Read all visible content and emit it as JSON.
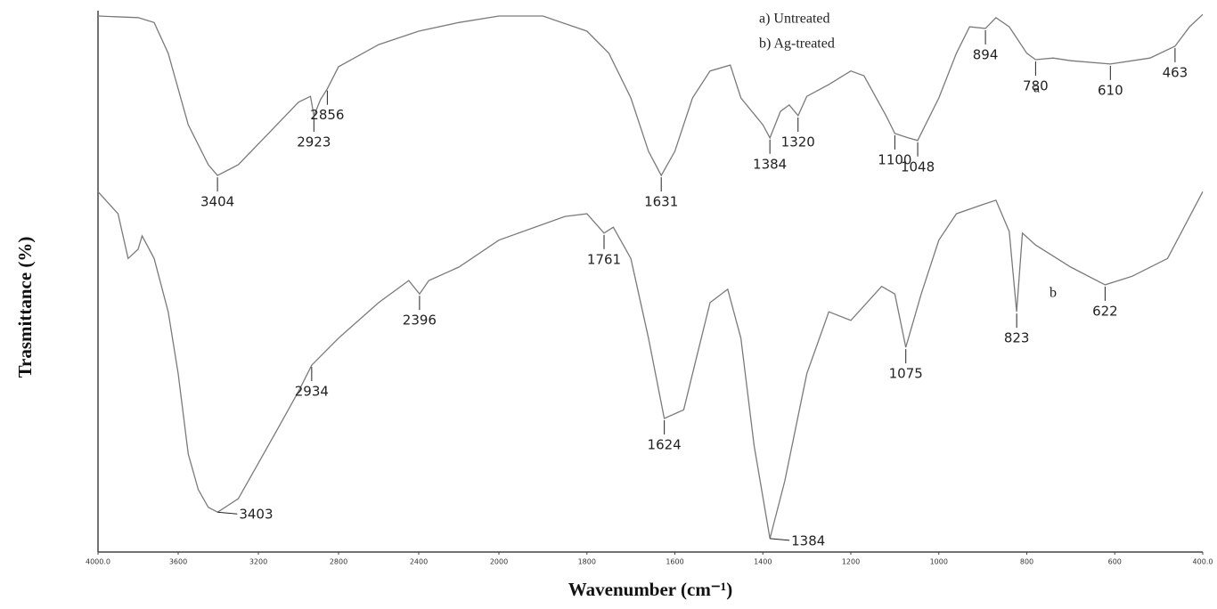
{
  "chart_data": {
    "type": "line",
    "x_label": "Wavenumber (cm⁻¹)",
    "y_label": "Trasmittance (%)",
    "xlim": [
      4000,
      400
    ],
    "x_scale_change": 2000,
    "xticks": [
      {
        "value": 4000,
        "label": "4000.0"
      },
      3600,
      3200,
      2800,
      2400,
      2000,
      1800,
      1600,
      1400,
      1200,
      1000,
      800,
      600,
      {
        "value": 400,
        "label": "400.0"
      }
    ],
    "ylim": [
      0,
      100
    ],
    "series": [
      {
        "name": "a) Untreated",
        "tag": "a",
        "color": "#7a7a7a",
        "x": [
          4000,
          3800,
          3720,
          3650,
          3550,
          3450,
          3404,
          3300,
          3150,
          3000,
          2940,
          2923,
          2890,
          2856,
          2800,
          2600,
          2400,
          2200,
          2000,
          1900,
          1800,
          1750,
          1700,
          1660,
          1631,
          1600,
          1560,
          1520,
          1474,
          1450,
          1400,
          1384,
          1360,
          1340,
          1320,
          1300,
          1250,
          1200,
          1170,
          1120,
          1100,
          1070,
          1048,
          1000,
          960,
          930,
          894,
          870,
          840,
          800,
          780,
          740,
          700,
          610,
          520,
          463,
          430,
          400
        ],
        "values": [
          99.5,
          99.2,
          98.3,
          92.6,
          79.3,
          71.9,
          69.9,
          71.9,
          77.7,
          83.5,
          84.6,
          81.0,
          84.0,
          86.0,
          90.1,
          94.2,
          96.7,
          98.3,
          99.5,
          99.5,
          96.7,
          92.6,
          84.3,
          74.4,
          69.9,
          74.4,
          84.3,
          89.3,
          90.4,
          84.3,
          79.3,
          76.9,
          81.8,
          83.0,
          81.0,
          84.6,
          86.8,
          89.3,
          88.4,
          81.0,
          77.7,
          76.9,
          76.4,
          84.3,
          92.6,
          97.5,
          97.2,
          99.2,
          97.5,
          92.6,
          91.4,
          91.7,
          91.2,
          90.6,
          91.7,
          93.9,
          97.5,
          99.8
        ],
        "annotations": [
          3404,
          2923,
          2856,
          1631,
          1384,
          1320,
          1100,
          1048,
          894,
          780,
          610,
          463
        ]
      },
      {
        "name": "b) Ag-treated",
        "tag": "b",
        "color": "#7a7a7a",
        "x": [
          4000,
          3900,
          3850,
          3800,
          3780,
          3720,
          3650,
          3600,
          3550,
          3500,
          3450,
          3403,
          3300,
          3200,
          3100,
          3000,
          2934,
          2800,
          2600,
          2450,
          2396,
          2350,
          2200,
          2000,
          1850,
          1800,
          1761,
          1740,
          1700,
          1660,
          1624,
          1580,
          1550,
          1520,
          1480,
          1450,
          1420,
          1384,
          1350,
          1300,
          1250,
          1200,
          1130,
          1100,
          1075,
          1040,
          1000,
          960,
          900,
          870,
          840,
          823,
          810,
          780,
          700,
          622,
          560,
          480,
          400
        ],
        "values": [
          66.9,
          62.8,
          54.5,
          56.2,
          58.7,
          54.5,
          44.6,
          33.1,
          18.2,
          11.6,
          8.3,
          7.4,
          9.9,
          16.5,
          23.1,
          29.8,
          34.7,
          39.7,
          46.3,
          50.4,
          47.9,
          50.4,
          52.9,
          57.9,
          62.3,
          62.8,
          59.2,
          60.3,
          54.5,
          39.7,
          24.8,
          26.4,
          36.4,
          46.3,
          48.8,
          39.7,
          19.8,
          2.5,
          13.2,
          33.1,
          44.6,
          43.0,
          49.3,
          47.9,
          38.0,
          47.9,
          57.9,
          62.8,
          64.5,
          65.3,
          59.5,
          44.6,
          59.2,
          57.0,
          52.9,
          49.6,
          51.2,
          54.5,
          66.9
        ],
        "annotations": [
          3403,
          2934,
          2396,
          1761,
          1624,
          1384,
          1075,
          823,
          622
        ]
      }
    ]
  }
}
